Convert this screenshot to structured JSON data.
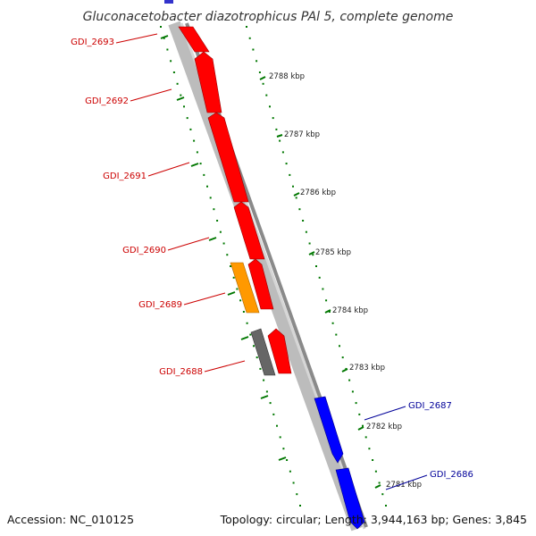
{
  "title": "Gluconacetobacter diazotrophicus PAl 5, complete genome",
  "footer": {
    "accession": "Accession: NC_010125",
    "summary": "Topology: circular; Length: 3,944,163 bp; Genes: 3,845"
  },
  "colors": {
    "reverse_gene": "#ff0000",
    "forward_gene": "#0000ff",
    "special_gene": "#ff9900",
    "pseudo_gene": "#666666",
    "reverse_label": "#cc0000",
    "forward_label": "#000099",
    "tick": "#007700",
    "backbone": "#999999"
  },
  "ruler": [
    {
      "label": "2788 kbp",
      "position_kbp": 2788
    },
    {
      "label": "2787 kbp",
      "position_kbp": 2787
    },
    {
      "label": "2786 kbp",
      "position_kbp": 2786
    },
    {
      "label": "2785 kbp",
      "position_kbp": 2785
    },
    {
      "label": "2784 kbp",
      "position_kbp": 2784
    },
    {
      "label": "2783 kbp",
      "position_kbp": 2783
    },
    {
      "label": "2782 kbp",
      "position_kbp": 2782
    },
    {
      "label": "2781 kbp",
      "position_kbp": 2781
    }
  ],
  "genes": [
    {
      "name": "GDI_2693",
      "strand": "reverse"
    },
    {
      "name": "GDI_2692",
      "strand": "reverse"
    },
    {
      "name": "GDI_2691",
      "strand": "reverse"
    },
    {
      "name": "GDI_2690",
      "strand": "reverse"
    },
    {
      "name": "GDI_2689",
      "strand": "reverse"
    },
    {
      "name": "GDI_2688",
      "strand": "reverse"
    },
    {
      "name": "GDI_2687",
      "strand": "forward"
    },
    {
      "name": "GDI_2686",
      "strand": "forward"
    }
  ]
}
